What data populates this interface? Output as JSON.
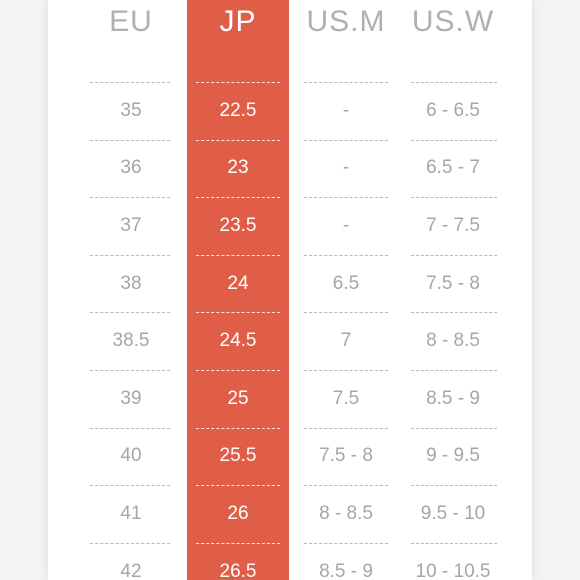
{
  "table": {
    "headers": {
      "eu": "EU",
      "jp": "JP",
      "us_m": "US.M",
      "us_w": "US.W"
    },
    "rows": [
      {
        "eu": "35",
        "jp": "22.5",
        "us_m": "-",
        "us_w": "6 - 6.5"
      },
      {
        "eu": "36",
        "jp": "23",
        "us_m": "-",
        "us_w": "6.5 - 7"
      },
      {
        "eu": "37",
        "jp": "23.5",
        "us_m": "-",
        "us_w": "7 - 7.5"
      },
      {
        "eu": "38",
        "jp": "24",
        "us_m": "6.5",
        "us_w": "7.5 - 8"
      },
      {
        "eu": "38.5",
        "jp": "24.5",
        "us_m": "7",
        "us_w": "8 - 8.5"
      },
      {
        "eu": "39",
        "jp": "25",
        "us_m": "7.5",
        "us_w": "8.5 - 9"
      },
      {
        "eu": "40",
        "jp": "25.5",
        "us_m": "7.5 - 8",
        "us_w": "9 - 9.5"
      },
      {
        "eu": "41",
        "jp": "26",
        "us_m": "8 - 8.5",
        "us_w": "9.5 - 10"
      },
      {
        "eu": "42",
        "jp": "26.5",
        "us_m": "8.5 - 9",
        "us_w": "10 - 10.5"
      }
    ]
  },
  "colors": {
    "highlight": "#e05d48",
    "text": "#a6a6a6",
    "card": "#ffffff",
    "background": "#f3f3f3"
  }
}
